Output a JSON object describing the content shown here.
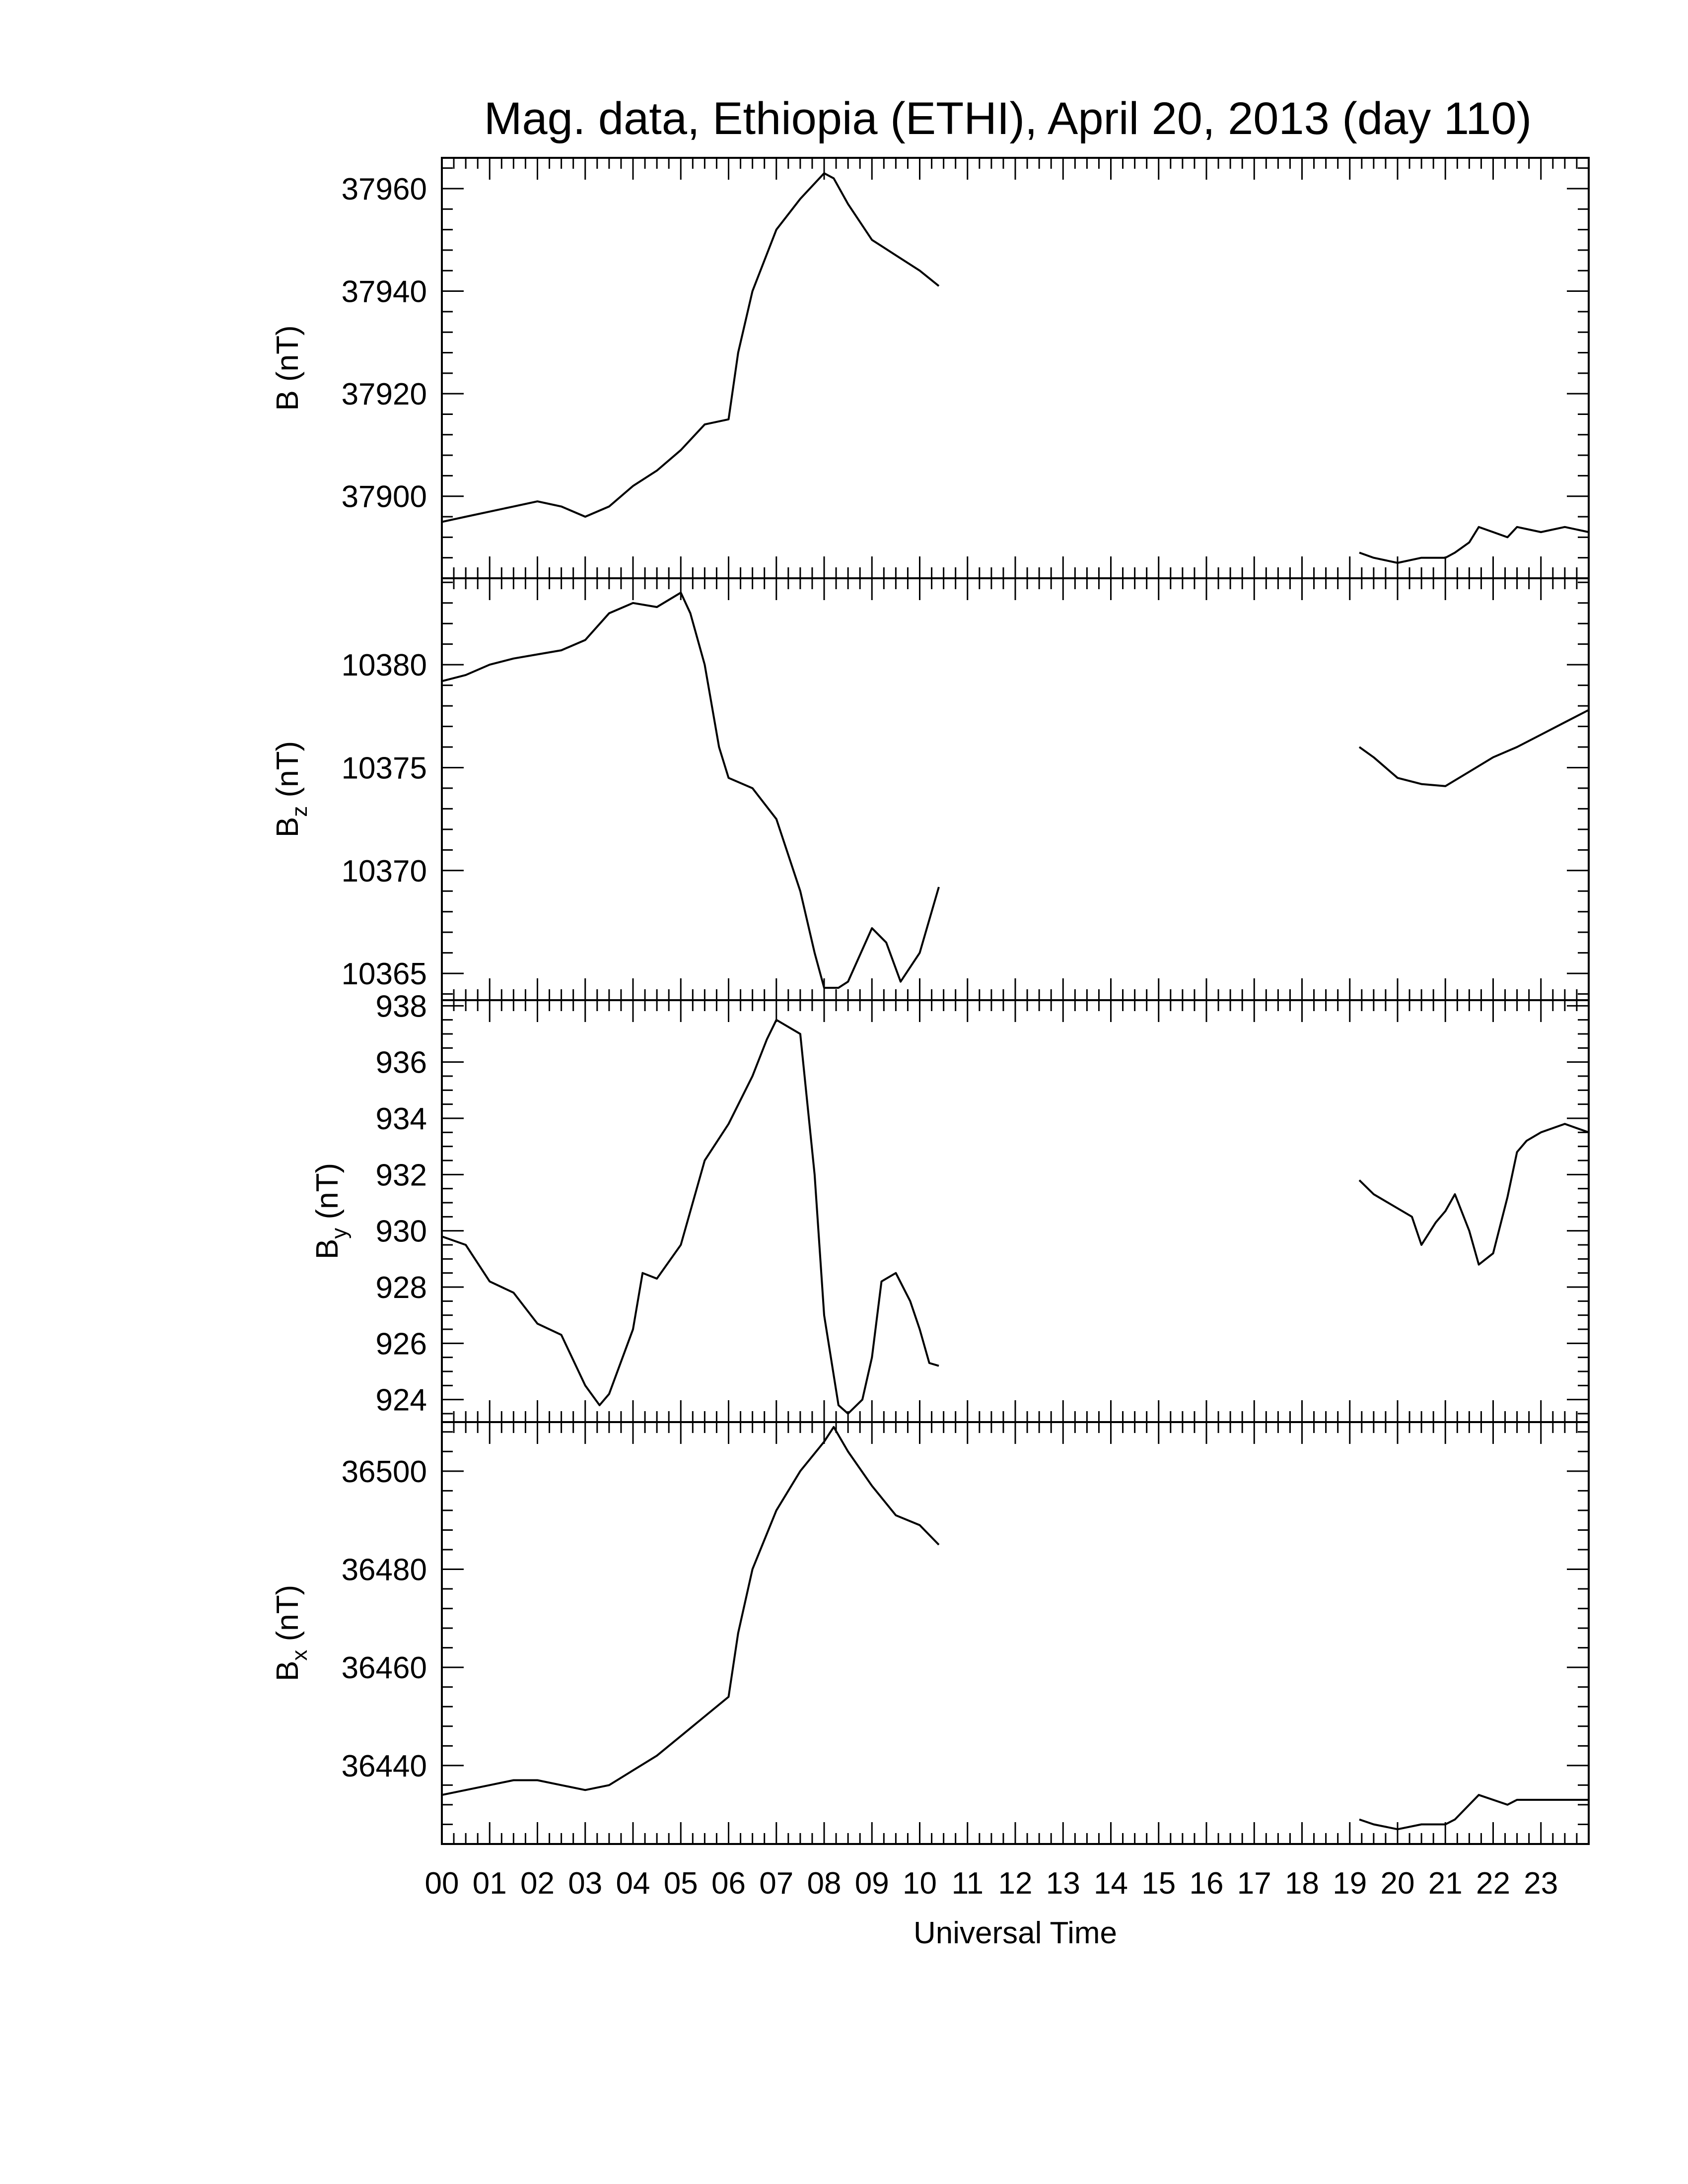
{
  "title": "Mag. data, Ethiopia (ETHI), April 20, 2013 (day 110)",
  "chart_data": [
    {
      "type": "line",
      "ylabel": "B (nT)",
      "ylabel_main": "B",
      "ylabel_sub": "",
      "ylabel_unit": " (nT)",
      "ylim": [
        37884,
        37966
      ],
      "yticks": [
        37900,
        37920,
        37940,
        37960
      ],
      "yminor": 5,
      "segments": [
        {
          "x": [
            0,
            0.5,
            1.0,
            1.5,
            2.0,
            2.5,
            3.0,
            3.5,
            4.0,
            4.5,
            5.0,
            5.5,
            6.0,
            6.2,
            6.5,
            7.0,
            7.5,
            8.0,
            8.2,
            8.5,
            9.0,
            9.5,
            10.0,
            10.4
          ],
          "y": [
            37895,
            37896,
            37897,
            37898,
            37899,
            37898,
            37896,
            37898,
            37902,
            37905,
            37909,
            37914,
            37915,
            37928,
            37940,
            37952,
            37958,
            37963,
            37962,
            37957,
            37950,
            37947,
            37944,
            37941
          ]
        },
        {
          "x": [
            19.2,
            19.5,
            20.0,
            20.5,
            21.0,
            21.2,
            21.5,
            21.7,
            22.0,
            22.3,
            22.5,
            23.0,
            23.5,
            24.0
          ],
          "y": [
            37889,
            37888,
            37887,
            37888,
            37888,
            37889,
            37891,
            37894,
            37893,
            37892,
            37894,
            37893,
            37894,
            37893
          ]
        }
      ]
    },
    {
      "type": "line",
      "ylabel": "Bz (nT)",
      "ylabel_main": "B",
      "ylabel_sub": "z",
      "ylabel_unit": " (nT)",
      "ylim": [
        10363.7,
        10384.2
      ],
      "yticks": [
        10365,
        10370,
        10375,
        10380
      ],
      "yminor": 5,
      "segments": [
        {
          "x": [
            0,
            0.5,
            1.0,
            1.5,
            2.0,
            2.5,
            3.0,
            3.5,
            4.0,
            4.5,
            5.0,
            5.2,
            5.5,
            5.8,
            6.0,
            6.5,
            7.0,
            7.5,
            7.8,
            8.0,
            8.3,
            8.5,
            9.0,
            9.3,
            9.6,
            10.0,
            10.4
          ],
          "y": [
            10379.2,
            10379.5,
            10380,
            10380.3,
            10380.5,
            10380.7,
            10381.2,
            10382.5,
            10383,
            10382.8,
            10383.5,
            10382.5,
            10380,
            10376,
            10374.5,
            10374,
            10372.5,
            10369,
            10366,
            10364.3,
            10364.3,
            10364.6,
            10367.2,
            10366.5,
            10364.6,
            10366,
            10369.2
          ]
        },
        {
          "x": [
            19.2,
            19.5,
            20.0,
            20.5,
            21.0,
            21.5,
            22.0,
            22.5,
            23.0,
            23.5,
            24.0
          ],
          "y": [
            10376,
            10375.5,
            10374.5,
            10374.2,
            10374.1,
            10374.8,
            10375.5,
            10376,
            10376.6,
            10377.2,
            10377.8
          ]
        }
      ]
    },
    {
      "type": "line",
      "ylabel": "By (nT)",
      "ylabel_main": "B",
      "ylabel_sub": "y",
      "ylabel_unit": " (nT)",
      "ylim": [
        923.2,
        938.2
      ],
      "yticks": [
        924,
        926,
        928,
        930,
        932,
        934,
        936,
        938
      ],
      "yminor": 4,
      "segments": [
        {
          "x": [
            0,
            0.5,
            1.0,
            1.5,
            2.0,
            2.5,
            3.0,
            3.3,
            3.5,
            4.0,
            4.2,
            4.5,
            5.0,
            5.5,
            6.0,
            6.5,
            6.8,
            7.0,
            7.5,
            7.8,
            8.0,
            8.3,
            8.5,
            8.8,
            9.0,
            9.2,
            9.5,
            9.8,
            10.0,
            10.2,
            10.4
          ],
          "y": [
            929.8,
            929.5,
            928.2,
            927.8,
            926.7,
            926.3,
            924.5,
            923.8,
            924.2,
            926.5,
            928.5,
            928.3,
            929.5,
            932.5,
            933.8,
            935.5,
            936.8,
            937.5,
            937,
            932,
            927,
            923.8,
            923.5,
            924,
            925.5,
            928.2,
            928.5,
            927.5,
            926.5,
            925.3,
            925.2
          ]
        },
        {
          "x": [
            19.2,
            19.5,
            20.0,
            20.3,
            20.5,
            20.8,
            21.0,
            21.2,
            21.5,
            21.7,
            22.0,
            22.3,
            22.5,
            22.7,
            23.0,
            23.5,
            24.0
          ],
          "y": [
            931.8,
            931.3,
            930.8,
            930.5,
            929.5,
            930.3,
            930.7,
            931.3,
            930,
            928.8,
            929.2,
            931.2,
            932.8,
            933.2,
            933.5,
            933.8,
            933.5
          ]
        }
      ]
    },
    {
      "type": "line",
      "ylabel": "Bx (nT)",
      "ylabel_main": "B",
      "ylabel_sub": "x",
      "ylabel_unit": " (nT)",
      "ylim": [
        36424,
        36510
      ],
      "yticks": [
        36440,
        36460,
        36480,
        36500
      ],
      "yminor": 5,
      "segments": [
        {
          "x": [
            0,
            0.5,
            1.0,
            1.5,
            2.0,
            2.5,
            3.0,
            3.5,
            4.0,
            4.5,
            5.0,
            5.5,
            6.0,
            6.2,
            6.5,
            7.0,
            7.5,
            8.0,
            8.2,
            8.5,
            9.0,
            9.5,
            10.0,
            10.4
          ],
          "y": [
            36434,
            36435,
            36436,
            36437,
            36437,
            36436,
            36435,
            36436,
            36439,
            36442,
            36446,
            36450,
            36454,
            36467,
            36480,
            36492,
            36500,
            36506,
            36509,
            36504,
            36497,
            36491,
            36489,
            36485
          ]
        },
        {
          "x": [
            19.2,
            19.5,
            20.0,
            20.5,
            21.0,
            21.2,
            21.5,
            21.7,
            22.0,
            22.3,
            22.5,
            23.0,
            23.5,
            24.0
          ],
          "y": [
            36429,
            36428,
            36427,
            36428,
            36428,
            36429,
            36432,
            36434,
            36433,
            36432,
            36433,
            36433,
            36433,
            36433
          ]
        }
      ]
    }
  ],
  "x_axis": {
    "label": "Universal Time",
    "range": [
      0,
      24
    ],
    "tick_labels": [
      "00",
      "01",
      "02",
      "03",
      "04",
      "05",
      "06",
      "07",
      "08",
      "09",
      "10",
      "11",
      "12",
      "13",
      "14",
      "15",
      "16",
      "17",
      "18",
      "19",
      "20",
      "21",
      "22",
      "23"
    ],
    "minor_per_hour": 4
  }
}
